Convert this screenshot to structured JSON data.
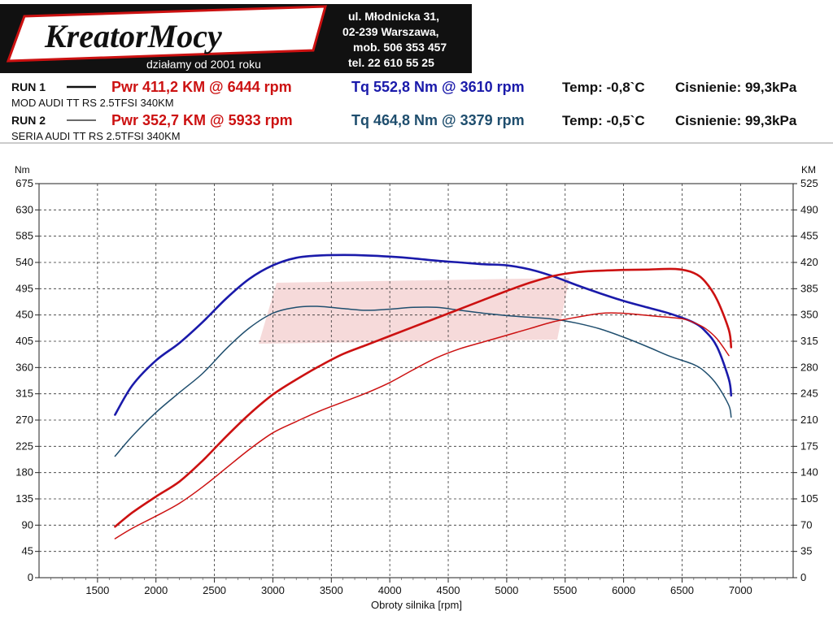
{
  "header": {
    "logo_text": "KreatorMocy",
    "logo_tagline": "działamy od 2001 roku",
    "address_lines": [
      "ul. Młodnicka 31,",
      "02-239  Warszawa,",
      "mob.  506 353 457",
      "tel.  22 610 55 25"
    ]
  },
  "runs": [
    {
      "label": "RUN 1",
      "vehicle": "MOD AUDI TT RS 2.5TFSI 340KM",
      "pwr_text": "Pwr  411,2 KM @ 6444 rpm",
      "tq_text": "Tq 552,8 Nm @ 3610 rpm",
      "temp_text": "Temp: -0,8`C",
      "pressure_text": "Cisnienie: 99,3kPa"
    },
    {
      "label": "RUN 2",
      "vehicle": "SERIA AUDI TT RS 2.5TFSI 340KM",
      "pwr_text": "Pwr  352,7 KM @ 5933 rpm",
      "tq_text": "Tq 464,8 Nm @ 3379 rpm",
      "temp_text": "Temp: -0,5`C",
      "pressure_text": "Cisnienie: 99,3kPa"
    }
  ],
  "colors": {
    "power": "#cc1111",
    "torque_run1": "#1a1aaa",
    "torque_run2": "#1f4e6e",
    "header_bg": "#111111",
    "grid": "#333333"
  },
  "chart_data": {
    "type": "line",
    "xlabel": "Obroty silnika [rpm]",
    "ylabel_left": "Nm",
    "ylabel_right": "KM",
    "xlim": [
      1000,
      7450
    ],
    "xticks": [
      1500,
      2000,
      2500,
      3000,
      3500,
      4000,
      4500,
      5000,
      5500,
      6000,
      6500,
      7000
    ],
    "ylim_left": [
      0,
      675
    ],
    "yticks_left": [
      0,
      45,
      90,
      135,
      180,
      225,
      270,
      315,
      360,
      405,
      450,
      495,
      540,
      585,
      630,
      675
    ],
    "ylim_right": [
      0,
      525
    ],
    "yticks_right": [
      0,
      35,
      70,
      105,
      140,
      175,
      210,
      245,
      280,
      315,
      350,
      385,
      420,
      455,
      490,
      525
    ],
    "grid": true,
    "series": [
      {
        "name": "RUN 1",
        "quantity": "torque",
        "axis": "left",
        "color": "#1a1aaa",
        "x": [
          1650,
          1800,
          2000,
          2200,
          2400,
          2600,
          2800,
          3000,
          3200,
          3400,
          3610,
          3800,
          4000,
          4200,
          4400,
          4600,
          4800,
          5000,
          5200,
          5400,
          5600,
          5800,
          6000,
          6200,
          6400,
          6600,
          6700,
          6800,
          6900,
          6920
        ],
        "values": [
          279,
          330,
          372,
          402,
          438,
          478,
          512,
          535,
          548,
          552,
          552.8,
          552,
          550,
          547,
          543,
          540,
          537,
          535,
          528,
          516,
          501,
          487,
          474,
          463,
          452,
          437,
          422,
          395,
          340,
          312
        ]
      },
      {
        "name": "RUN 2",
        "quantity": "torque",
        "axis": "left",
        "color": "#1f4e6e",
        "x": [
          1650,
          1800,
          2000,
          2200,
          2400,
          2600,
          2800,
          3000,
          3200,
          3379,
          3600,
          3800,
          4000,
          4200,
          4400,
          4600,
          4800,
          5000,
          5200,
          5400,
          5600,
          5800,
          6000,
          6200,
          6400,
          6600,
          6700,
          6800,
          6900,
          6920
        ],
        "values": [
          208,
          243,
          283,
          317,
          350,
          392,
          428,
          453,
          463,
          464.8,
          461,
          458,
          460,
          463,
          463,
          458,
          453,
          449,
          446,
          443,
          436,
          426,
          412,
          396,
          379,
          365,
          352,
          330,
          295,
          275
        ]
      },
      {
        "name": "RUN 1",
        "quantity": "power",
        "axis": "right",
        "color": "#cc1111",
        "x": [
          1650,
          1800,
          2000,
          2200,
          2400,
          2600,
          2800,
          3000,
          3200,
          3400,
          3600,
          3800,
          4000,
          4200,
          4400,
          4600,
          4800,
          5000,
          5200,
          5400,
          5600,
          5800,
          6000,
          6200,
          6444,
          6600,
          6700,
          6800,
          6900,
          6920
        ],
        "values": [
          68,
          87,
          108,
          128,
          156,
          188,
          218,
          244,
          264,
          282,
          298,
          310,
          322,
          334,
          346,
          358,
          370,
          382,
          393,
          402,
          407,
          409,
          410,
          410.5,
          411.2,
          406,
          394,
          370,
          330,
          307
        ]
      },
      {
        "name": "RUN 2",
        "quantity": "power",
        "axis": "right",
        "color": "#cc1111",
        "x": [
          1650,
          1800,
          2000,
          2200,
          2400,
          2600,
          2800,
          3000,
          3200,
          3400,
          3600,
          3800,
          4000,
          4200,
          4400,
          4600,
          4800,
          5000,
          5200,
          5400,
          5600,
          5800,
          5933,
          6100,
          6300,
          6500,
          6600,
          6700,
          6800,
          6900
        ],
        "values": [
          52,
          66,
          82,
          99,
          121,
          146,
          171,
          193,
          208,
          222,
          234,
          246,
          260,
          277,
          293,
          305,
          314,
          323,
          332,
          341,
          347,
          352,
          352.7,
          351,
          348,
          345,
          340,
          332,
          318,
          296
        ]
      }
    ]
  }
}
